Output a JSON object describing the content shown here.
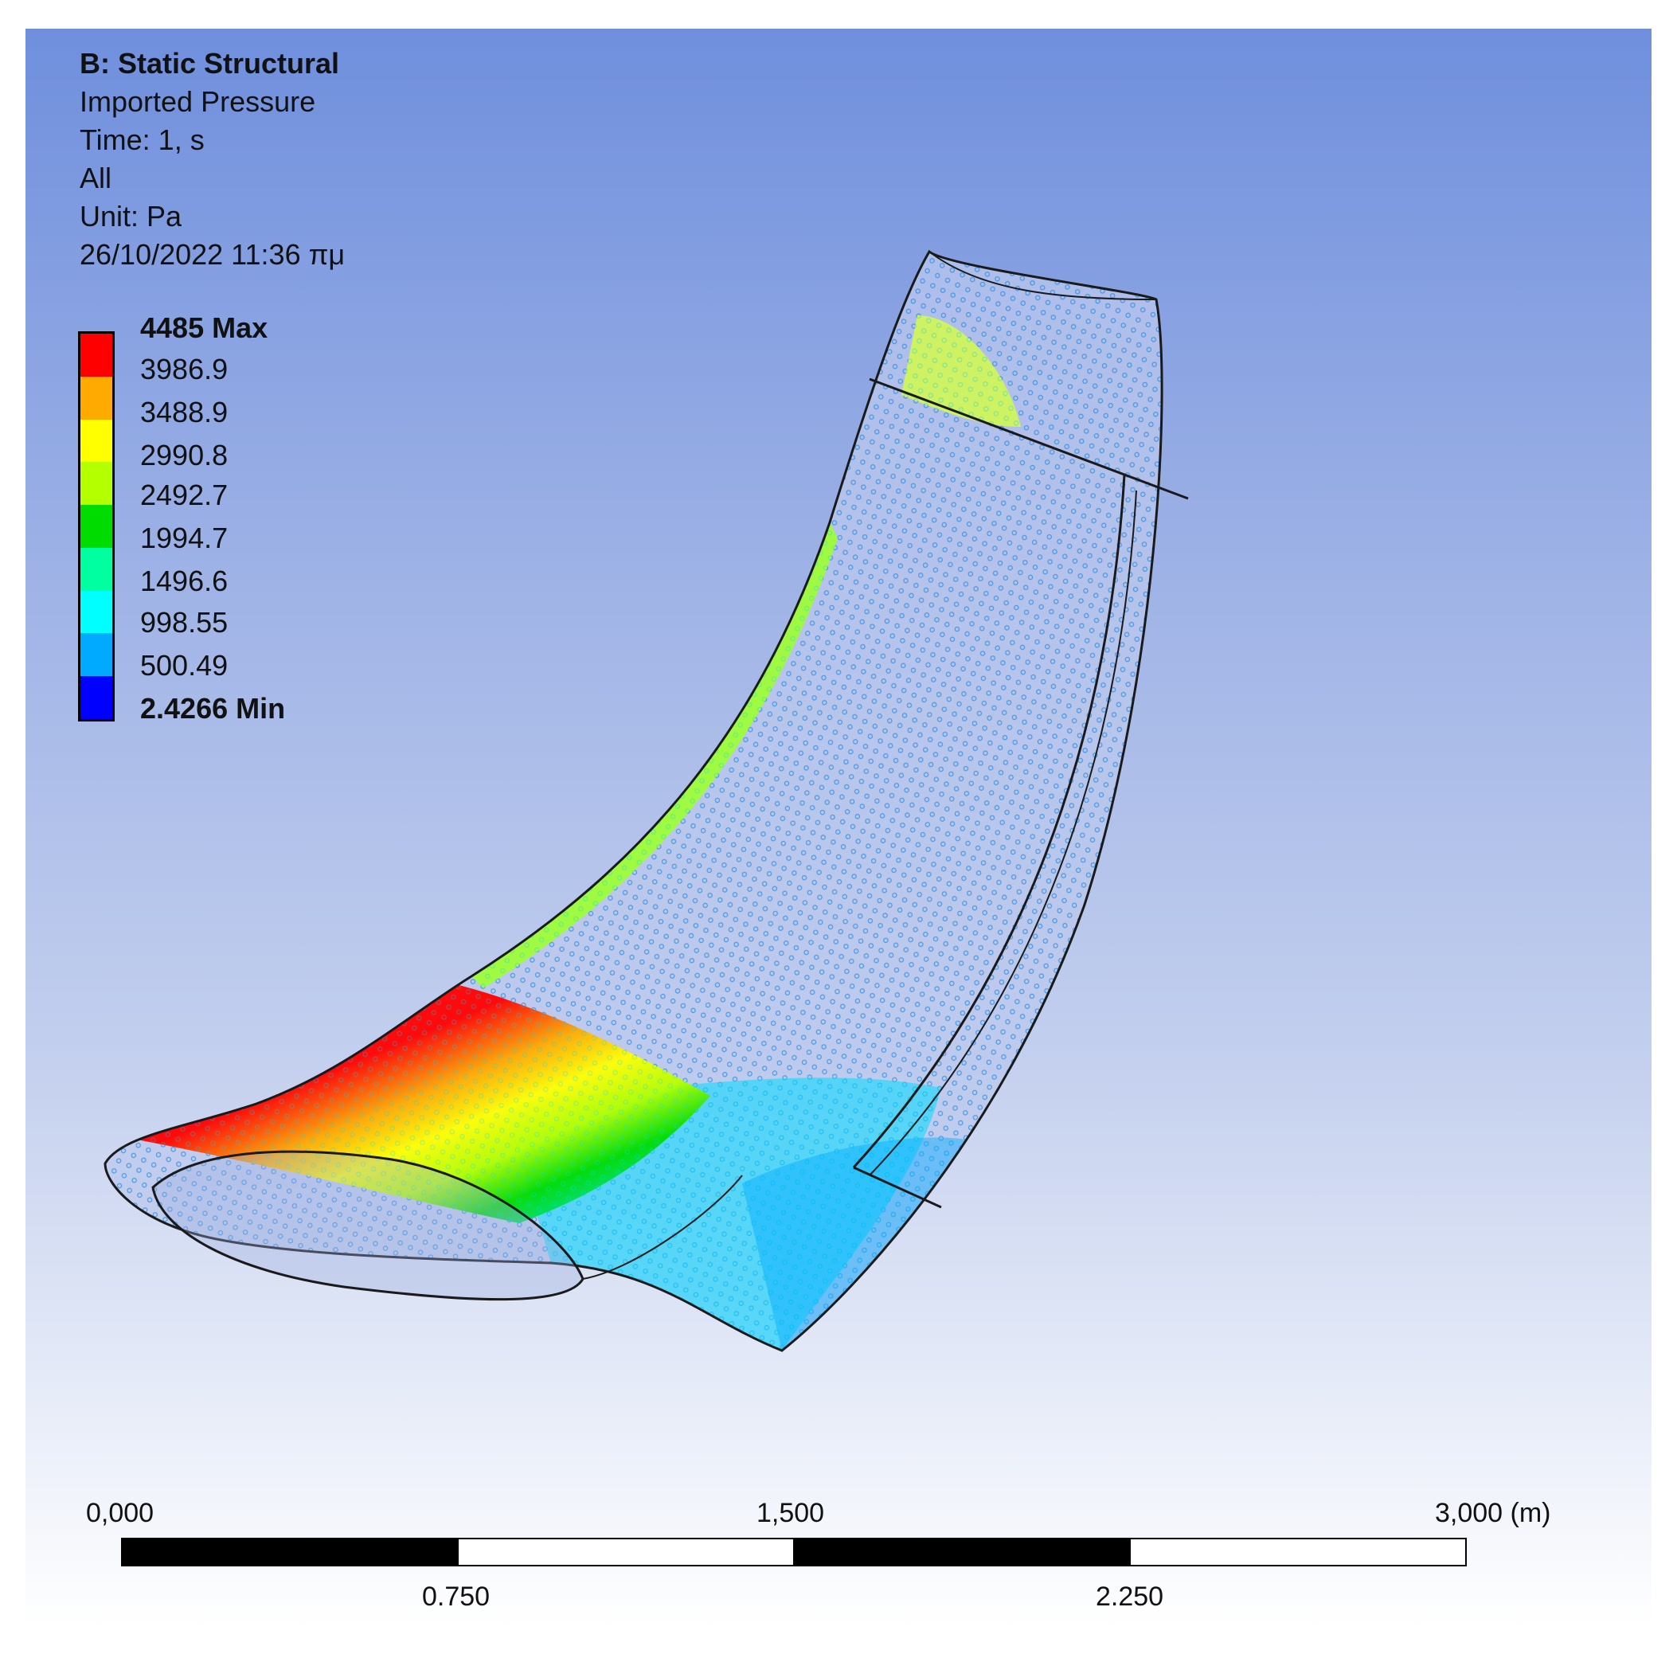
{
  "header": {
    "title": "B: Static Structural",
    "result": "Imported Pressure",
    "time": "Time: 1, s",
    "scope": "All",
    "unit": "Unit: Pa",
    "timestamp": "26/10/2022 11:36 πμ"
  },
  "legend": {
    "max_label": "4485 Max",
    "min_label": "2.4266 Min",
    "levels": [
      "3986.9",
      "3488.9",
      "2990.8",
      "2492.7",
      "1994.7",
      "1496.6",
      "998.55",
      "500.49"
    ],
    "colors": [
      "#ff0000",
      "#ffaa00",
      "#ffff00",
      "#b4ff00",
      "#00dc00",
      "#00ffa0",
      "#00ffff",
      "#00aaff",
      "#0000ff"
    ]
  },
  "scale_bar": {
    "labels_top": [
      "0,000",
      "1,500",
      "3,000 (m)"
    ],
    "labels_bottom": [
      "0.750",
      "2.250"
    ]
  }
}
